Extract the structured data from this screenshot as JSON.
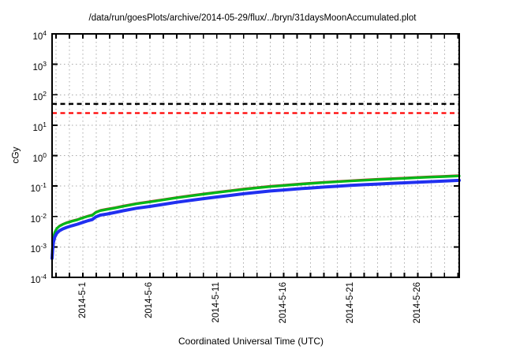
{
  "chart_data": {
    "type": "line",
    "title": "/data/run/goesPlots/archive/2014-05-29/flux/../bryn/31daysMoonAccumulated.plot",
    "xlabel": "Coordinated Universal Time (UTC)",
    "ylabel": "cGy",
    "y_scale": "log",
    "ylim_exponents": [
      -4,
      4
    ],
    "y_tick_exponents": [
      4,
      3,
      2,
      1,
      0,
      -1,
      -2,
      -3,
      -4
    ],
    "x_range_days": [
      0,
      30.4
    ],
    "x_major_ticks": [
      {
        "label": "2014-5-1",
        "day": 2.3
      },
      {
        "label": "2014-5-6",
        "day": 7.3
      },
      {
        "label": "2014-5-11",
        "day": 12.3
      },
      {
        "label": "2014-5-16",
        "day": 17.3
      },
      {
        "label": "2014-5-21",
        "day": 22.3
      },
      {
        "label": "2014-5-26",
        "day": 27.3
      }
    ],
    "x_minor_tick_first_day": 0.3,
    "x_minor_tick_step_days": 1,
    "x_minor_tick_count": 31,
    "grid": {
      "color": "#a9a9a9",
      "style": "dotted",
      "horizontal": "each decade",
      "vertical": "each day"
    },
    "border_color": "#000000",
    "thresholds": [
      {
        "name": "black-dashed-threshold",
        "value_cgy": 50,
        "color": "#000000",
        "width": 2.6,
        "dash": "6,4.5"
      },
      {
        "name": "red-dashed-threshold",
        "value_cgy": 25,
        "color": "#ff0000",
        "width": 2.2,
        "dash": "6,4.5"
      }
    ],
    "series": [
      {
        "name": "series-red",
        "color": "#c23028",
        "width": 1.4,
        "points": [
          [
            0,
            0.0006
          ],
          [
            0.05,
            0.0013
          ],
          [
            0.1,
            0.0022
          ],
          [
            0.2,
            0.0032
          ],
          [
            0.35,
            0.0043
          ],
          [
            0.55,
            0.0052
          ],
          [
            0.8,
            0.0059
          ],
          [
            1.1,
            0.0067
          ],
          [
            1.5,
            0.0076
          ],
          [
            1.9,
            0.0084
          ],
          [
            2.3,
            0.0097
          ],
          [
            2.7,
            0.011
          ],
          [
            3.0,
            0.0119
          ],
          [
            3.25,
            0.0146
          ],
          [
            3.6,
            0.0167
          ],
          [
            4.1,
            0.0184
          ],
          [
            4.7,
            0.0205
          ],
          [
            5.3,
            0.0232
          ],
          [
            6.3,
            0.0281
          ],
          [
            7.3,
            0.0324
          ],
          [
            8.3,
            0.0378
          ],
          [
            9.3,
            0.0443
          ],
          [
            10.3,
            0.0508
          ],
          [
            11.3,
            0.0583
          ],
          [
            12.3,
            0.0659
          ],
          [
            13.3,
            0.0745
          ],
          [
            14.3,
            0.0842
          ],
          [
            15.3,
            0.094
          ],
          [
            16.3,
            0.1037
          ],
          [
            17.3,
            0.1123
          ],
          [
            18.3,
            0.122
          ],
          [
            19.3,
            0.1307
          ],
          [
            20.3,
            0.1404
          ],
          [
            21.3,
            0.149
          ],
          [
            22.3,
            0.1588
          ],
          [
            23.3,
            0.1674
          ],
          [
            24.3,
            0.176
          ],
          [
            25.3,
            0.1847
          ],
          [
            26.3,
            0.1933
          ],
          [
            27.3,
            0.203
          ],
          [
            28.3,
            0.2117
          ],
          [
            29.3,
            0.2214
          ],
          [
            30.4,
            0.2322
          ]
        ]
      },
      {
        "name": "series-green",
        "color": "#00b818",
        "width": 3.2,
        "points": [
          [
            0,
            0.00055
          ],
          [
            0.05,
            0.0012
          ],
          [
            0.1,
            0.002
          ],
          [
            0.2,
            0.003
          ],
          [
            0.35,
            0.004
          ],
          [
            0.55,
            0.0048
          ],
          [
            0.8,
            0.0055
          ],
          [
            1.1,
            0.0062
          ],
          [
            1.5,
            0.007
          ],
          [
            1.9,
            0.0078
          ],
          [
            2.3,
            0.009
          ],
          [
            2.7,
            0.0102
          ],
          [
            3.0,
            0.011
          ],
          [
            3.25,
            0.0135
          ],
          [
            3.6,
            0.0155
          ],
          [
            4.1,
            0.017
          ],
          [
            4.7,
            0.019
          ],
          [
            5.3,
            0.0215
          ],
          [
            6.3,
            0.026
          ],
          [
            7.3,
            0.03
          ],
          [
            8.3,
            0.035
          ],
          [
            9.3,
            0.041
          ],
          [
            10.3,
            0.047
          ],
          [
            11.3,
            0.054
          ],
          [
            12.3,
            0.061
          ],
          [
            13.3,
            0.069
          ],
          [
            14.3,
            0.078
          ],
          [
            15.3,
            0.087
          ],
          [
            16.3,
            0.096
          ],
          [
            17.3,
            0.104
          ],
          [
            18.3,
            0.113
          ],
          [
            19.3,
            0.121
          ],
          [
            20.3,
            0.13
          ],
          [
            21.3,
            0.138
          ],
          [
            22.3,
            0.147
          ],
          [
            23.3,
            0.155
          ],
          [
            24.3,
            0.163
          ],
          [
            25.3,
            0.171
          ],
          [
            26.3,
            0.179
          ],
          [
            27.3,
            0.188
          ],
          [
            28.3,
            0.196
          ],
          [
            29.3,
            0.205
          ],
          [
            30.4,
            0.215
          ]
        ]
      },
      {
        "name": "series-blue",
        "color": "#2030f0",
        "width": 4,
        "points": [
          [
            0,
            0.00042
          ],
          [
            0.05,
            0.00085
          ],
          [
            0.1,
            0.0014
          ],
          [
            0.2,
            0.0021
          ],
          [
            0.35,
            0.0028
          ],
          [
            0.55,
            0.0034
          ],
          [
            0.8,
            0.0039
          ],
          [
            1.1,
            0.0044
          ],
          [
            1.5,
            0.005
          ],
          [
            1.9,
            0.0056
          ],
          [
            2.3,
            0.0064
          ],
          [
            2.7,
            0.0073
          ],
          [
            3.0,
            0.0079
          ],
          [
            3.25,
            0.0096
          ],
          [
            3.6,
            0.0111
          ],
          [
            4.1,
            0.0121
          ],
          [
            4.7,
            0.0136
          ],
          [
            5.3,
            0.0154
          ],
          [
            6.3,
            0.0186
          ],
          [
            7.3,
            0.0214
          ],
          [
            8.3,
            0.025
          ],
          [
            9.3,
            0.0293
          ],
          [
            10.3,
            0.0336
          ],
          [
            11.3,
            0.0386
          ],
          [
            12.3,
            0.0436
          ],
          [
            13.3,
            0.0493
          ],
          [
            14.3,
            0.0557
          ],
          [
            15.3,
            0.0621
          ],
          [
            16.3,
            0.0686
          ],
          [
            17.3,
            0.0743
          ],
          [
            18.3,
            0.0807
          ],
          [
            19.3,
            0.0864
          ],
          [
            20.3,
            0.0929
          ],
          [
            21.3,
            0.0986
          ],
          [
            22.3,
            0.105
          ],
          [
            23.3,
            0.1107
          ],
          [
            24.3,
            0.1164
          ],
          [
            25.3,
            0.1221
          ],
          [
            26.3,
            0.1279
          ],
          [
            27.3,
            0.1343
          ],
          [
            28.3,
            0.14
          ],
          [
            29.3,
            0.1464
          ],
          [
            30.4,
            0.1536
          ]
        ]
      }
    ]
  }
}
